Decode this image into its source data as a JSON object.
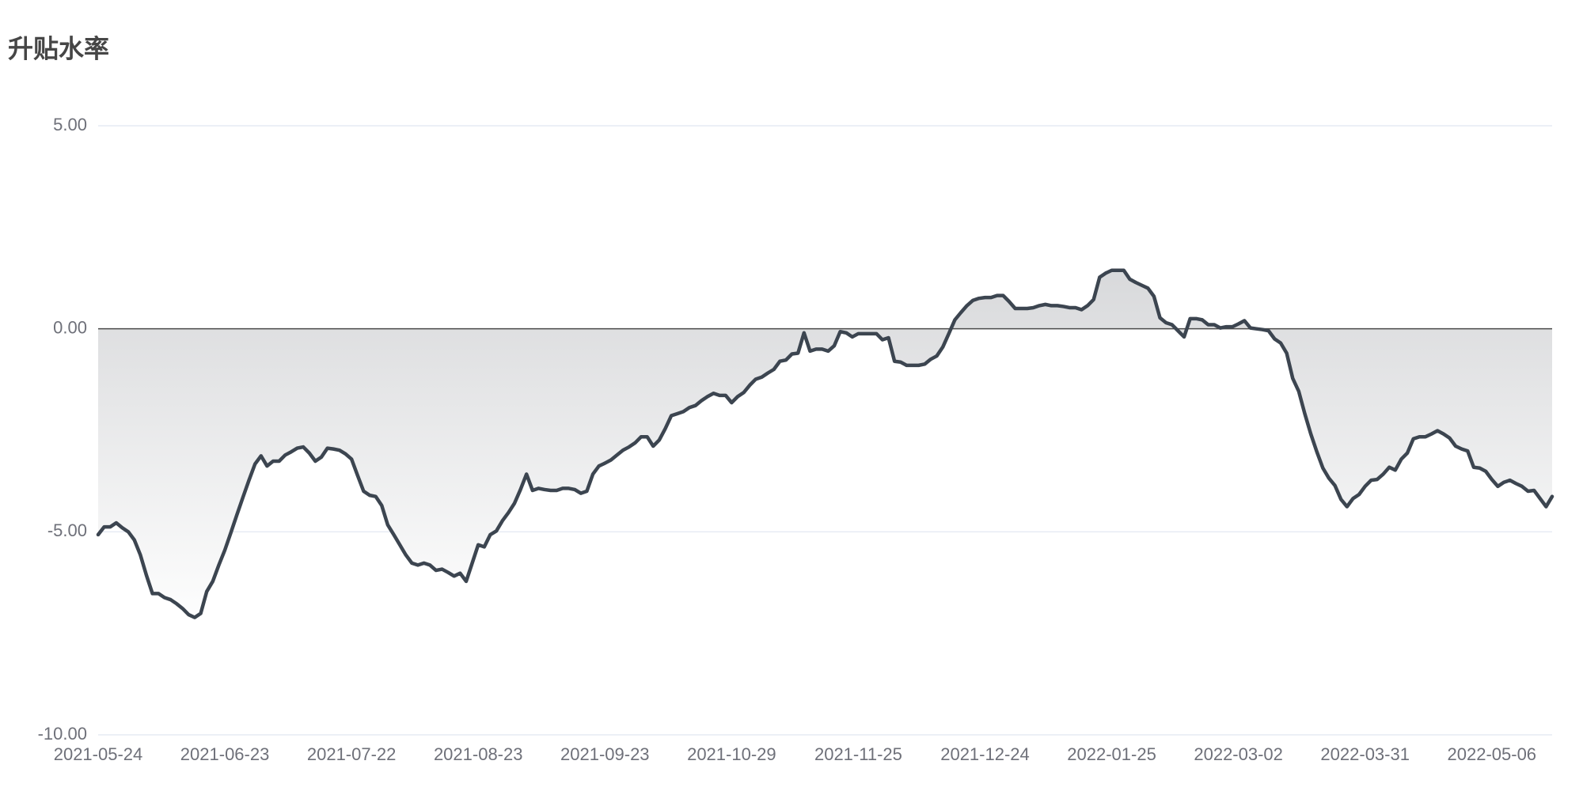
{
  "chart_data": {
    "type": "area",
    "title": "升贴水率",
    "categories": [
      "2021-05-24",
      null,
      null,
      null,
      null,
      null,
      null,
      null,
      null,
      null,
      null,
      null,
      null,
      null,
      null,
      null,
      null,
      null,
      null,
      null,
      null,
      "2021-06-23",
      null,
      null,
      null,
      null,
      null,
      null,
      null,
      null,
      null,
      null,
      null,
      null,
      null,
      null,
      null,
      null,
      null,
      null,
      null,
      null,
      "2021-07-22",
      null,
      null,
      null,
      null,
      null,
      null,
      null,
      null,
      null,
      null,
      null,
      null,
      null,
      null,
      null,
      null,
      null,
      null,
      null,
      null,
      "2021-08-23",
      null,
      null,
      null,
      null,
      null,
      null,
      null,
      null,
      null,
      null,
      null,
      null,
      null,
      null,
      null,
      null,
      null,
      null,
      null,
      null,
      "2021-09-23",
      null,
      null,
      null,
      null,
      null,
      null,
      null,
      null,
      null,
      null,
      null,
      null,
      null,
      null,
      null,
      null,
      null,
      null,
      null,
      null,
      "2021-10-29",
      null,
      null,
      null,
      null,
      null,
      null,
      null,
      null,
      null,
      null,
      null,
      null,
      null,
      null,
      null,
      null,
      null,
      null,
      null,
      null,
      "2021-11-25",
      null,
      null,
      null,
      null,
      null,
      null,
      null,
      null,
      null,
      null,
      null,
      null,
      null,
      null,
      null,
      null,
      null,
      null,
      null,
      null,
      "2021-12-24",
      null,
      null,
      null,
      null,
      null,
      null,
      null,
      null,
      null,
      null,
      null,
      null,
      null,
      null,
      null,
      null,
      null,
      null,
      null,
      null,
      "2022-01-25",
      null,
      null,
      null,
      null,
      null,
      null,
      null,
      null,
      null,
      null,
      null,
      null,
      null,
      null,
      null,
      null,
      null,
      null,
      null,
      null,
      "2022-03-02",
      null,
      null,
      null,
      null,
      null,
      null,
      null,
      null,
      null,
      null,
      null,
      null,
      null,
      null,
      null,
      null,
      null,
      null,
      null,
      null,
      "2022-03-31",
      null,
      null,
      null,
      null,
      null,
      null,
      null,
      null,
      null,
      null,
      null,
      null,
      null,
      null,
      null,
      null,
      null,
      null,
      null,
      null,
      "2022-05-06",
      null,
      null,
      null,
      null,
      null,
      null,
      null,
      null,
      null,
      null
    ],
    "values": [
      -5.07,
      -4.88,
      -4.88,
      -4.78,
      -4.9,
      -5.0,
      -5.2,
      -5.57,
      -6.07,
      -6.52,
      -6.52,
      -6.62,
      -6.67,
      -6.77,
      -6.89,
      -7.04,
      -7.11,
      -7.01,
      -6.47,
      -6.22,
      -5.82,
      -5.45,
      -5.02,
      -4.58,
      -4.15,
      -3.73,
      -3.33,
      -3.13,
      -3.38,
      -3.26,
      -3.26,
      -3.11,
      -3.03,
      -2.94,
      -2.91,
      -3.06,
      -3.26,
      -3.16,
      -2.94,
      -2.96,
      -2.99,
      -3.08,
      -3.21,
      -3.61,
      -4.0,
      -4.1,
      -4.13,
      -4.35,
      -4.83,
      -5.07,
      -5.32,
      -5.57,
      -5.77,
      -5.82,
      -5.77,
      -5.82,
      -5.95,
      -5.92,
      -6.0,
      -6.09,
      -6.02,
      -6.22,
      -5.77,
      -5.32,
      -5.37,
      -5.07,
      -4.98,
      -4.73,
      -4.53,
      -4.3,
      -3.96,
      -3.58,
      -3.98,
      -3.93,
      -3.96,
      -3.98,
      -3.98,
      -3.93,
      -3.93,
      -3.96,
      -4.05,
      -4.0,
      -3.58,
      -3.38,
      -3.31,
      -3.23,
      -3.11,
      -2.99,
      -2.91,
      -2.81,
      -2.66,
      -2.66,
      -2.89,
      -2.74,
      -2.46,
      -2.14,
      -2.09,
      -2.04,
      -1.94,
      -1.89,
      -1.77,
      -1.67,
      -1.59,
      -1.64,
      -1.64,
      -1.82,
      -1.67,
      -1.57,
      -1.39,
      -1.24,
      -1.19,
      -1.09,
      -1.0,
      -0.8,
      -0.77,
      -0.62,
      -0.6,
      -0.1,
      -0.55,
      -0.5,
      -0.5,
      -0.55,
      -0.42,
      -0.07,
      -0.1,
      -0.2,
      -0.12,
      -0.12,
      -0.12,
      -0.12,
      -0.27,
      -0.22,
      -0.8,
      -0.82,
      -0.9,
      -0.9,
      -0.9,
      -0.87,
      -0.75,
      -0.67,
      -0.45,
      -0.12,
      0.22,
      0.4,
      0.57,
      0.7,
      0.75,
      0.77,
      0.77,
      0.82,
      0.82,
      0.67,
      0.5,
      0.5,
      0.5,
      0.52,
      0.57,
      0.6,
      0.57,
      0.57,
      0.55,
      0.52,
      0.52,
      0.47,
      0.57,
      0.72,
      1.27,
      1.37,
      1.44,
      1.44,
      1.44,
      1.22,
      1.14,
      1.07,
      1.0,
      0.8,
      0.27,
      0.15,
      0.1,
      -0.05,
      -0.2,
      0.25,
      0.25,
      0.22,
      0.1,
      0.1,
      0.02,
      0.05,
      0.05,
      0.12,
      0.2,
      0.02,
      0.0,
      -0.02,
      -0.05,
      -0.25,
      -0.35,
      -0.6,
      -1.22,
      -1.54,
      -2.09,
      -2.59,
      -3.03,
      -3.43,
      -3.68,
      -3.86,
      -4.2,
      -4.38,
      -4.18,
      -4.08,
      -3.88,
      -3.73,
      -3.71,
      -3.58,
      -3.41,
      -3.48,
      -3.21,
      -3.06,
      -2.71,
      -2.66,
      -2.66,
      -2.59,
      -2.51,
      -2.59,
      -2.69,
      -2.89,
      -2.96,
      -3.01,
      -3.41,
      -3.43,
      -3.51,
      -3.71,
      -3.88,
      -3.78,
      -3.73,
      -3.81,
      -3.88,
      -4.0,
      -3.98,
      -4.18,
      -4.38,
      -4.13
    ],
    "color": "#3c4550",
    "ylim": [
      -10,
      5
    ],
    "yticks": [
      {
        "value": 5,
        "label": "5.00"
      },
      {
        "value": 0,
        "label": "0.00"
      },
      {
        "value": -5,
        "label": "-5.00"
      },
      {
        "value": -10,
        "label": "-10.00"
      }
    ],
    "grid": true
  }
}
